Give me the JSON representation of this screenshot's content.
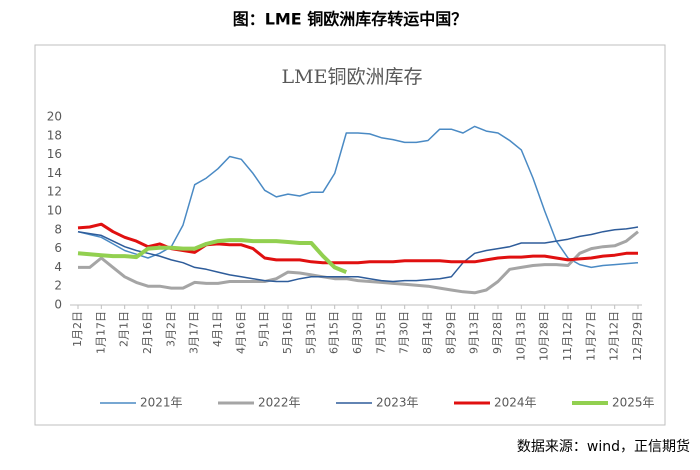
{
  "header": {
    "title": "图：LME 铜欧洲库存转运中国？"
  },
  "source": "数据来源：wind，正信期货",
  "chart_data": {
    "type": "line",
    "title": "LME铜欧洲库存",
    "categories": [
      "1月2日",
      null,
      "1月17日",
      null,
      "2月1日",
      null,
      "2月16日",
      null,
      "3月2日",
      null,
      "3月17日",
      null,
      "4月1日",
      null,
      "4月16日",
      null,
      "5月1日",
      null,
      "5月16日",
      null,
      "5月31日",
      null,
      "6月15日",
      null,
      "6月30日",
      null,
      "7月15日",
      null,
      "7月30日",
      null,
      "8月14日",
      null,
      "8月29日",
      null,
      "9月13日",
      null,
      "9月28日",
      null,
      "10月13日",
      null,
      "10月28日",
      null,
      "11月12日",
      null,
      "11月27日",
      null,
      "12月12日",
      null,
      "12月29日"
    ],
    "series": [
      {
        "name": "2021年",
        "color": "#4a8ac4",
        "values": [
          7.8,
          7.5,
          7.2,
          6.5,
          5.8,
          5.4,
          5.0,
          5.5,
          6.2,
          8.5,
          12.8,
          13.5,
          14.5,
          15.8,
          15.5,
          14,
          12.2,
          11.5,
          11.8,
          11.6,
          12,
          12,
          14,
          18.3,
          18.3,
          18.2,
          17.8,
          17.6,
          17.3,
          17.3,
          17.5,
          18.7,
          18.7,
          18.3,
          19,
          18.5,
          18.3,
          17.5,
          16.5,
          13.5,
          10,
          6.8,
          5,
          4.3,
          4,
          4.2,
          4.3,
          4.4,
          4.5
        ]
      },
      {
        "name": "2022年",
        "color": "#a5a5a5",
        "values": [
          4,
          4,
          5,
          4,
          3,
          2.4,
          2,
          2,
          1.8,
          1.8,
          2.4,
          2.3,
          2.3,
          2.5,
          2.5,
          2.5,
          2.5,
          2.8,
          3.5,
          3.4,
          3.2,
          3,
          2.8,
          2.8,
          2.6,
          2.5,
          2.4,
          2.3,
          2.2,
          2.1,
          2,
          1.8,
          1.6,
          1.4,
          1.3,
          1.6,
          2.5,
          3.8,
          4,
          4.2,
          4.3,
          4.3,
          4.2,
          5.5,
          6,
          6.2,
          6.3,
          6.8,
          7.8
        ]
      },
      {
        "name": "2023年",
        "color": "#2e5c9a",
        "values": [
          7.8,
          7.6,
          7.4,
          6.8,
          6.2,
          5.8,
          5.5,
          5.2,
          4.8,
          4.5,
          4,
          3.8,
          3.5,
          3.2,
          3,
          2.8,
          2.6,
          2.5,
          2.5,
          2.8,
          3,
          3,
          3,
          3,
          3,
          2.8,
          2.6,
          2.5,
          2.6,
          2.6,
          2.7,
          2.8,
          3,
          4.5,
          5.5,
          5.8,
          6,
          6.2,
          6.6,
          6.6,
          6.6,
          6.8,
          7,
          7.3,
          7.5,
          7.8,
          8,
          8.1,
          8.3
        ]
      },
      {
        "name": "2024年",
        "color": "#e01010",
        "values": [
          8.2,
          8.3,
          8.6,
          7.8,
          7.2,
          6.8,
          6.2,
          6.5,
          6,
          5.8,
          5.6,
          6.4,
          6.5,
          6.4,
          6.4,
          6,
          5,
          4.8,
          4.8,
          4.8,
          4.6,
          4.5,
          4.5,
          4.5,
          4.5,
          4.6,
          4.6,
          4.6,
          4.7,
          4.7,
          4.7,
          4.7,
          4.6,
          4.6,
          4.6,
          4.8,
          5,
          5.1,
          5.1,
          5.2,
          5.2,
          5,
          4.8,
          4.9,
          5,
          5.2,
          5.3,
          5.5,
          5.5
        ]
      },
      {
        "name": "2025年",
        "color": "#92d050",
        "values": [
          5.5,
          5.4,
          5.3,
          5.2,
          5.2,
          5.1,
          6,
          6.1,
          6.1,
          6,
          6,
          6.5,
          6.8,
          6.9,
          6.9,
          6.8,
          6.8,
          6.8,
          6.7,
          6.6,
          6.6,
          5.2,
          4.0,
          3.5,
          null,
          null,
          null,
          null,
          null,
          null,
          null,
          null,
          null,
          null,
          null,
          null,
          null,
          null,
          null,
          null,
          null,
          null,
          null,
          null,
          null,
          null,
          null,
          null,
          null
        ]
      }
    ],
    "ylim": [
      0,
      20
    ],
    "yticks": [
      0,
      2,
      4,
      6,
      8,
      10,
      12,
      14,
      16,
      18,
      20
    ],
    "grid": false,
    "legend": "bottom"
  }
}
